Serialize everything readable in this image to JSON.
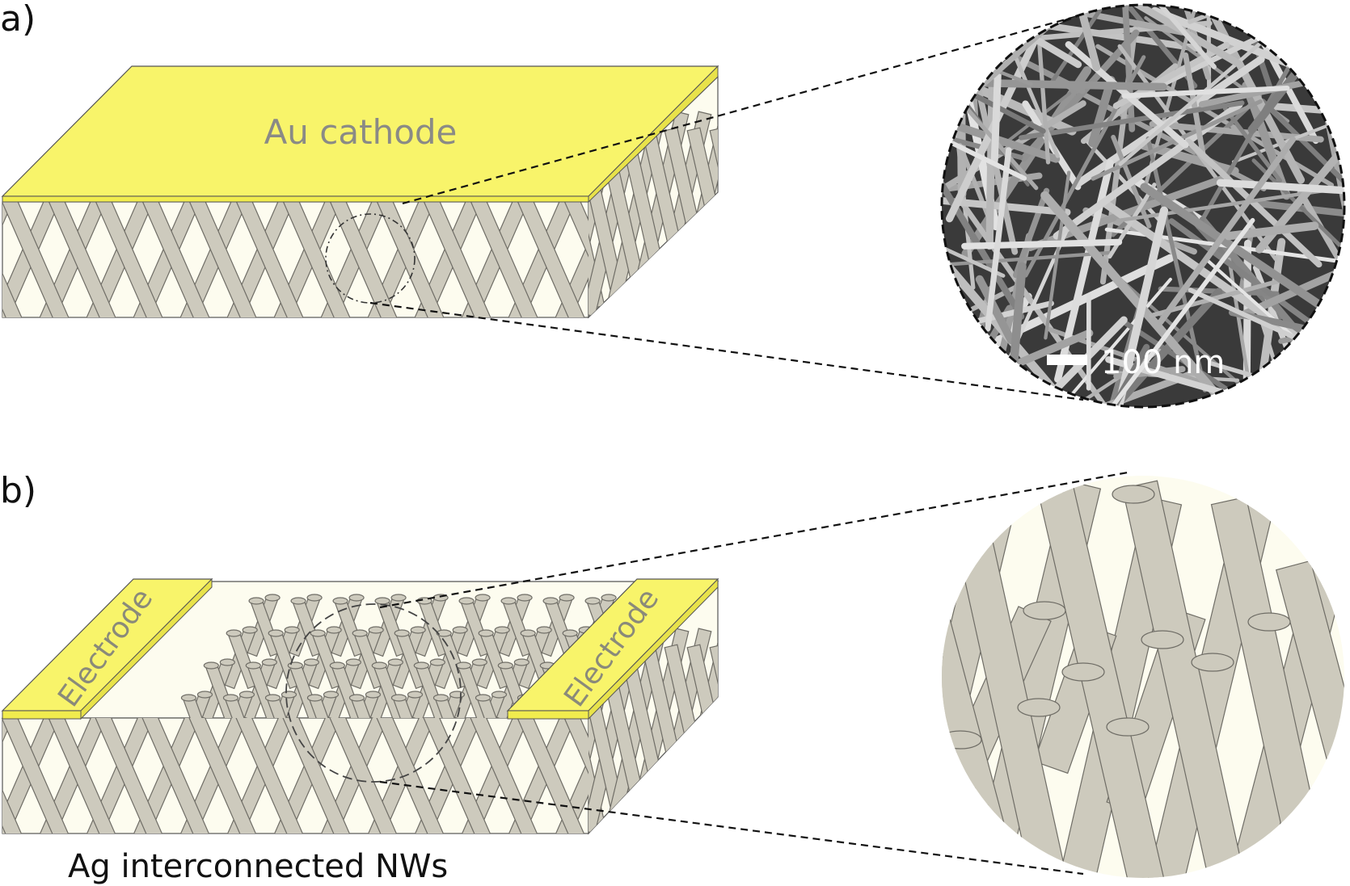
{
  "panel_a": {
    "label": "a)",
    "cathode_label": "Au cathode",
    "scale_bar_label": "100 nm",
    "colors": {
      "gold": "#f8f46a",
      "matrix": "#fdfcef",
      "wire": "#cdcabd",
      "sem_bg": "#3a3a3a"
    }
  },
  "panel_b": {
    "label": "b)",
    "electrode_left_label": "Electrode",
    "electrode_right_label": "Electrode",
    "caption": "Ag interconnected NWs",
    "colors": {
      "gold": "#f8f46a",
      "matrix": "#fdfcef",
      "wire": "#cdcabd"
    }
  }
}
